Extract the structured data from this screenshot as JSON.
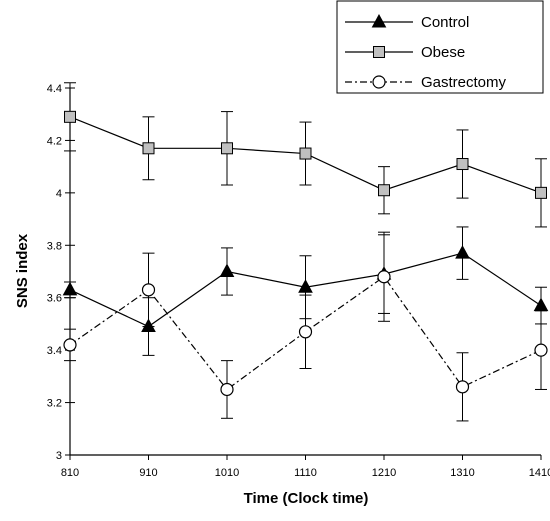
{
  "chart_data": {
    "type": "line",
    "title": "",
    "xlabel": "Time (Clock time)",
    "ylabel": "SNS index",
    "categories": [
      "810",
      "910",
      "1010",
      "1110",
      "1210",
      "1310",
      "1410"
    ],
    "ylim": [
      3,
      4.4
    ],
    "yticks": [
      "3",
      "3.2",
      "3.4",
      "3.6",
      "3.8",
      "4",
      "4.2",
      "4.4"
    ],
    "grid": false,
    "legend_position": "top-right",
    "series": [
      {
        "name": "Control",
        "marker": "filled-triangle",
        "line_style": "solid",
        "values": [
          3.63,
          3.49,
          3.7,
          3.64,
          3.69,
          3.77,
          3.57
        ],
        "error": [
          0.03,
          0.11,
          0.09,
          0.12,
          0.15,
          0.1,
          0.07
        ],
        "color": "#000000"
      },
      {
        "name": "Obese",
        "marker": "gray-square",
        "line_style": "solid",
        "values": [
          4.29,
          4.17,
          4.17,
          4.15,
          4.01,
          4.11,
          4.0
        ],
        "error": [
          0.13,
          0.12,
          0.14,
          0.12,
          0.09,
          0.13,
          0.13
        ],
        "color": "#000000",
        "marker_fill": "#c0c0c0"
      },
      {
        "name": "Gastrectomy",
        "marker": "open-circle",
        "line_style": "dash-dot",
        "values": [
          3.42,
          3.63,
          3.25,
          3.47,
          3.68,
          3.26,
          3.4
        ],
        "error": [
          0.06,
          0.14,
          0.11,
          0.14,
          0.17,
          0.13,
          0.15
        ],
        "color": "#000000"
      }
    ]
  }
}
